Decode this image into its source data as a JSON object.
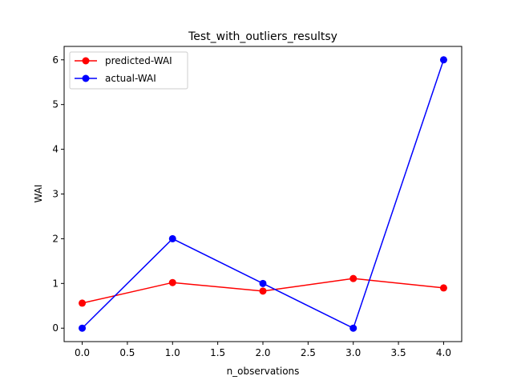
{
  "chart_data": {
    "type": "line",
    "title": "Test_with_outliers_resultsу",
    "xlabel": "n_observations",
    "ylabel": "WAI",
    "x": [
      0,
      1,
      2,
      3,
      4
    ],
    "xlim": [
      -0.2,
      4.2
    ],
    "ylim": [
      -0.3,
      6.3
    ],
    "xticks": [
      "0.0",
      "0.5",
      "1.0",
      "1.5",
      "2.0",
      "2.5",
      "3.0",
      "3.5",
      "4.0"
    ],
    "yticks": [
      "0",
      "1",
      "2",
      "3",
      "4",
      "5",
      "6"
    ],
    "grid": false,
    "legend_position": "top-left",
    "series": [
      {
        "name": "predicted-WAI",
        "color": "#ff0000",
        "marker": "circle",
        "values": [
          0.56,
          1.02,
          0.83,
          1.11,
          0.9
        ]
      },
      {
        "name": "actual-WAI",
        "color": "#0000ff",
        "marker": "circle",
        "values": [
          0,
          2,
          1,
          0,
          6
        ]
      }
    ]
  }
}
